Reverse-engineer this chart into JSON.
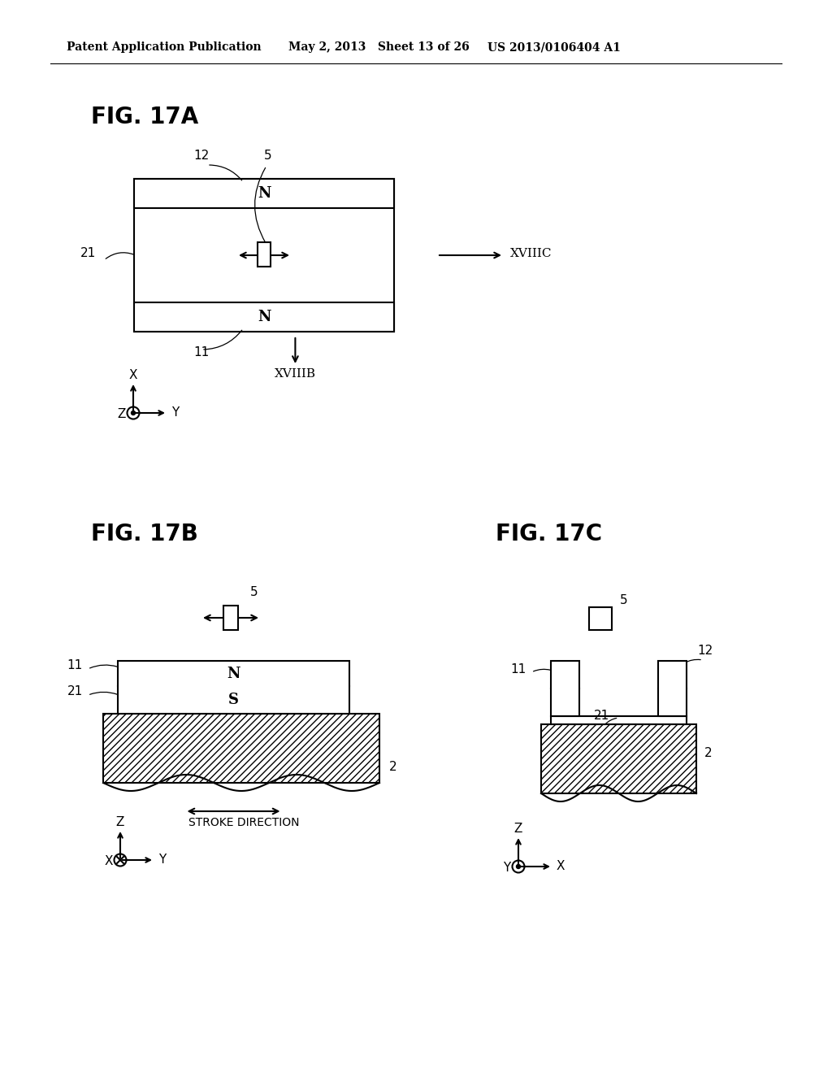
{
  "header_left": "Patent Application Publication",
  "header_mid": "May 2, 2013   Sheet 13 of 26",
  "header_right": "US 2013/0106404 A1",
  "fig17a_title": "FIG. 17A",
  "fig17b_title": "FIG. 17B",
  "fig17c_title": "FIG. 17C",
  "background": "#ffffff",
  "line_color": "#000000"
}
